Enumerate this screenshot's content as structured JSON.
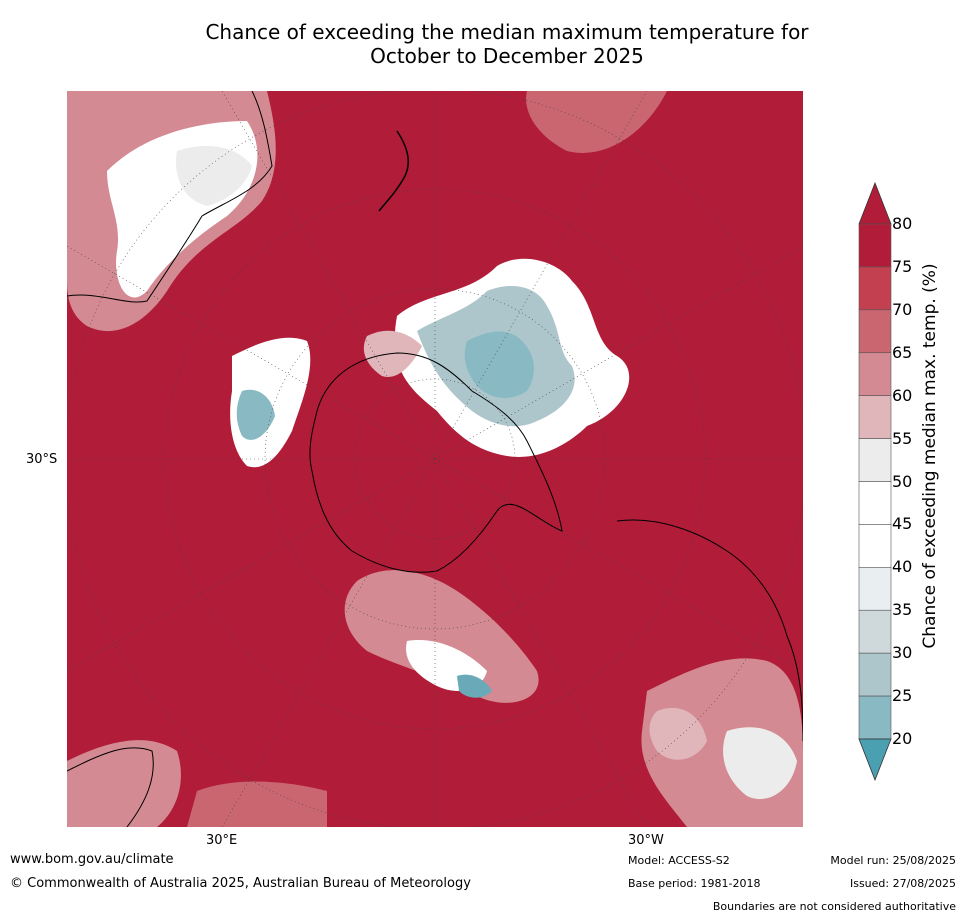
{
  "title": {
    "line1": "Chance of exceeding the median maximum temperature for",
    "line2": "October to December 2025"
  },
  "axis_labels": {
    "left_lat": "30°S",
    "bottom_lon_east": "30°E",
    "bottom_lon_west": "30°W"
  },
  "colorbar": {
    "label": "Chance of exceeding median max. temp. (%)",
    "ticks": [
      "80",
      "75",
      "70",
      "65",
      "60",
      "55",
      "50",
      "45",
      "40",
      "35",
      "30",
      "25",
      "20"
    ],
    "colors_high_to_low": [
      "#b11c38",
      "#c2404f",
      "#c96670",
      "#d48a92",
      "#e0b6ba",
      "#ececec",
      "#ffffff",
      "#ffffff",
      "#e9eef0",
      "#cfd9dc",
      "#acc6cc",
      "#89b9c3",
      "#69a9b8"
    ],
    "overflow_high_color": "#b11c38",
    "overflow_low_color": "#4a9fb0"
  },
  "map": {
    "dominant_color": "#b11c38",
    "projection": "south-polar-stereographic",
    "land_outline_color": "#000000",
    "border_color": "#808080"
  },
  "footer": {
    "website": "www.bom.gov.au/climate",
    "copyright": "© Commonwealth of Australia 2025, Australian Bureau of Meteorology",
    "model": "Model: ACCESS-S2",
    "base_period": "Base period: 1981-2018",
    "model_run": "Model run: 25/08/2025",
    "issued": "Issued: 27/08/2025",
    "disclaimer": "Boundaries are not considered authoritative"
  }
}
